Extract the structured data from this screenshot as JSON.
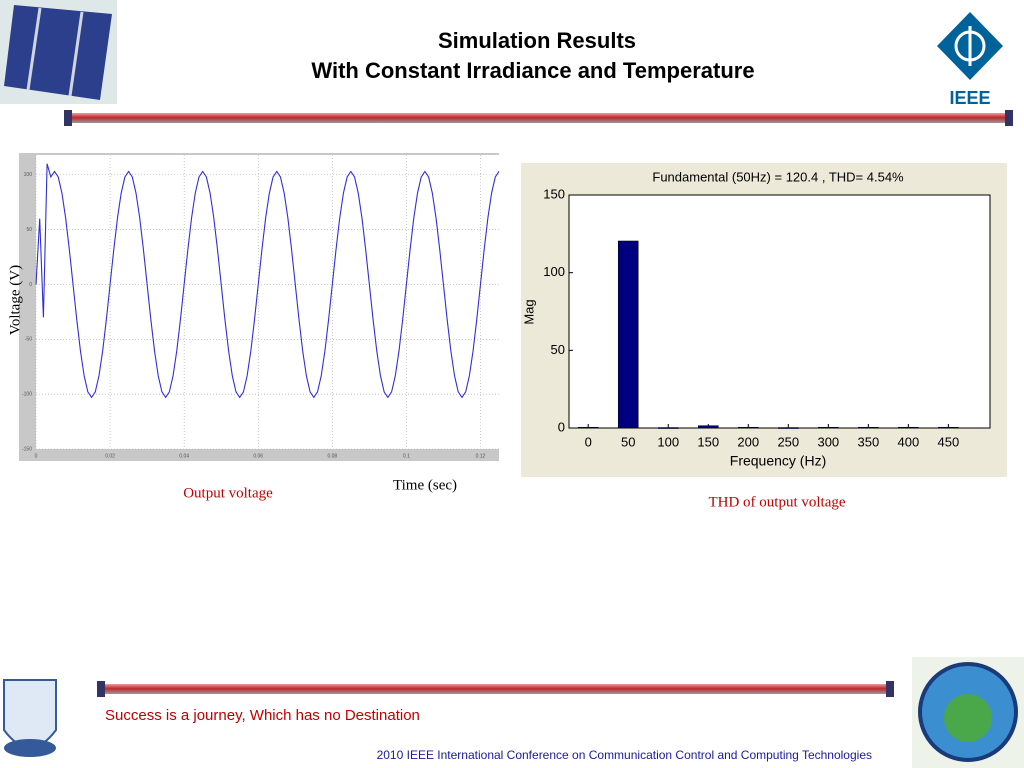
{
  "header": {
    "title": [
      "Simulation Results",
      "With Constant Irradiance and Temperature"
    ],
    "logo": "IEEE"
  },
  "chart_data": [
    {
      "type": "line",
      "ylabel": "Voltage (V)",
      "xlabel": "Time (sec)",
      "color": "#2f2fd6",
      "grid": true,
      "x": [
        0,
        0.001,
        0.002,
        0.003,
        0.004,
        0.005,
        0.006,
        0.007,
        0.008,
        0.009,
        0.01,
        0.011,
        0.012,
        0.013,
        0.014,
        0.015,
        0.016,
        0.017,
        0.018,
        0.019,
        0.02,
        0.021,
        0.022,
        0.023,
        0.024,
        0.025,
        0.026,
        0.027,
        0.028,
        0.029,
        0.03,
        0.031,
        0.032,
        0.033,
        0.034,
        0.035,
        0.036,
        0.037,
        0.038,
        0.039,
        0.04,
        0.041,
        0.042,
        0.043,
        0.044,
        0.045,
        0.046,
        0.047,
        0.048,
        0.049,
        0.05,
        0.051,
        0.052,
        0.053,
        0.054,
        0.055,
        0.056,
        0.057,
        0.058,
        0.059,
        0.06,
        0.061,
        0.062,
        0.063,
        0.064,
        0.065,
        0.066,
        0.067,
        0.068,
        0.069,
        0.07,
        0.071,
        0.072,
        0.073,
        0.074,
        0.075,
        0.076,
        0.077,
        0.078,
        0.079,
        0.08,
        0.081,
        0.082,
        0.083,
        0.084,
        0.085,
        0.086,
        0.087,
        0.088,
        0.089,
        0.09,
        0.091,
        0.092,
        0.093,
        0.094,
        0.095,
        0.096,
        0.097,
        0.098,
        0.099,
        0.1,
        0.101,
        0.102,
        0.103,
        0.104,
        0.105,
        0.106,
        0.107,
        0.108,
        0.109,
        0.11,
        0.111,
        0.112,
        0.113,
        0.114,
        0.115,
        0.116,
        0.117,
        0.118,
        0.119,
        0.12,
        0.121,
        0.122,
        0.123,
        0.124,
        0.125
      ],
      "values": [
        0,
        60,
        -30,
        110,
        98,
        103,
        98,
        83.3,
        60.6,
        31.8,
        0,
        -31.8,
        -60.6,
        -83.3,
        -98,
        -103,
        -98,
        -83.3,
        -60.6,
        -31.8,
        0,
        31.8,
        60.6,
        83.3,
        98,
        103,
        98,
        83.3,
        60.6,
        31.8,
        0,
        -31.8,
        -60.6,
        -83.3,
        -98,
        -103,
        -98,
        -83.3,
        -60.6,
        -31.8,
        0,
        31.8,
        60.6,
        83.3,
        98,
        103,
        98,
        83.3,
        60.6,
        31.8,
        0,
        -31.8,
        -60.6,
        -83.3,
        -98,
        -103,
        -98,
        -83.3,
        -60.6,
        -31.8,
        0,
        31.8,
        60.6,
        83.3,
        98,
        103,
        98,
        83.3,
        60.6,
        31.8,
        0,
        -31.8,
        -60.6,
        -83.3,
        -98,
        -103,
        -98,
        -83.3,
        -60.6,
        -31.8,
        0,
        31.8,
        60.6,
        83.3,
        98,
        103,
        98,
        83.3,
        60.6,
        31.8,
        0,
        -31.8,
        -60.6,
        -83.3,
        -98,
        -103,
        -98,
        -83.3,
        -60.6,
        -31.8,
        0,
        31.8,
        60.6,
        83.3,
        98,
        103,
        98,
        83.3,
        60.6,
        31.8,
        0,
        -31.8,
        -60.6,
        -83.3,
        -98,
        -103,
        -98,
        -83.3,
        -60.6,
        -31.8,
        0,
        31.8,
        60.6,
        83.3,
        98,
        103
      ],
      "xlim": [
        0,
        0.125
      ],
      "xticks": [
        0,
        0.02,
        0.04,
        0.06,
        0.08,
        0.1,
        0.12
      ],
      "ylim": [
        -150,
        118
      ],
      "yticks": [
        -150,
        -100,
        -50,
        0,
        50,
        100
      ]
    },
    {
      "type": "bar",
      "title": "Fundamental (50Hz) = 120.4 , THD= 4.54%",
      "xlabel": "Frequency (Hz)",
      "ylabel": "Mag",
      "color": "#000080",
      "grid": false,
      "x": [
        0,
        50,
        100,
        150,
        200,
        250,
        300,
        350,
        400,
        450
      ],
      "values": [
        0.5,
        120.4,
        0.3,
        1.5,
        0.5,
        0.3,
        0.5,
        0.5,
        0.5,
        0.5
      ],
      "xlim": [
        -24,
        502
      ],
      "xticks": [
        0,
        50,
        100,
        150,
        200,
        250,
        300,
        350,
        400,
        450
      ],
      "ylim": [
        0,
        150
      ],
      "yticks": [
        0,
        50,
        100,
        150
      ]
    }
  ],
  "captions": [
    "Output voltage",
    "THD of output voltage"
  ],
  "footer": {
    "motto": "Success is a journey, Which has no Destination",
    "conference": "2010 IEEE International Conference on Communication Control and Computing Technologies"
  }
}
